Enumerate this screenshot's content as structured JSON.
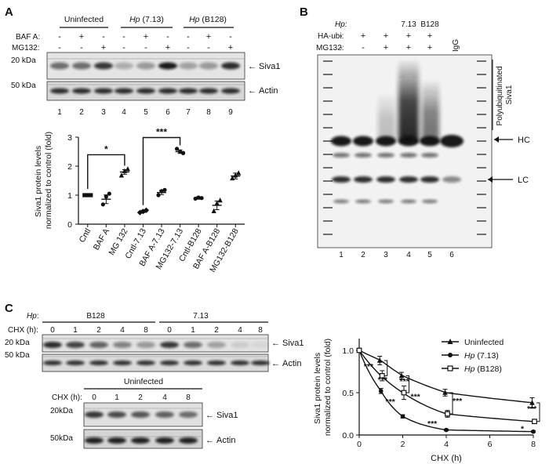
{
  "panels": {
    "a": "A",
    "b": "B",
    "c": "C"
  },
  "panel_a": {
    "groups": [
      {
        "label_italic": "",
        "label": "Uninfected"
      },
      {
        "label_italic": "Hp",
        "label": " (7.13)"
      },
      {
        "label_italic": "Hp",
        "label": " (B128)"
      }
    ],
    "rows": [
      {
        "label": "BAF A:",
        "signs": [
          "-",
          "+",
          "-",
          "-",
          "+",
          "-",
          "-",
          "+",
          "-"
        ]
      },
      {
        "label": "MG132:",
        "signs": [
          "-",
          "-",
          "+",
          "-",
          "-",
          "+",
          "-",
          "-",
          "+"
        ]
      }
    ],
    "mw_top": "20 kDa",
    "mw_bottom": "50 kDa",
    "band_top": "Siva1",
    "band_bottom": "Actin",
    "lanes": [
      "1",
      "2",
      "3",
      "4",
      "5",
      "6",
      "7",
      "8",
      "9"
    ],
    "arrow": "←"
  },
  "chart_data": [
    {
      "type": "scatter",
      "ylabel": "Siva1 protein levels normalized to control (fold)",
      "ylabel_lines": [
        "Siva1 protein levels",
        "normalized to control (fold)"
      ],
      "ylim": [
        0,
        3
      ],
      "yticks": [
        "0",
        "1",
        "2",
        "3"
      ],
      "categories": [
        "Cntl",
        "BAF A",
        "MG 132",
        "Cntl-7.13",
        "BAF A-7.13",
        "MG132-7.13",
        "Cntl-B128",
        "BAF A-B128",
        "MG132-B128"
      ],
      "markers": [
        "square",
        "dot",
        "triangle",
        "diamond",
        "dot",
        "dot",
        "dot",
        "triangle",
        "triangle"
      ],
      "means": [
        1.0,
        0.86,
        1.8,
        0.44,
        1.09,
        2.5,
        0.9,
        0.65,
        1.66
      ],
      "sem": [
        0.04,
        0.15,
        0.08,
        0.04,
        0.07,
        0.06,
        0.04,
        0.15,
        0.1
      ],
      "points": [
        [
          1.0,
          1.0,
          1.0
        ],
        [
          0.68,
          0.95,
          1.05
        ],
        [
          1.68,
          1.83,
          1.9
        ],
        [
          0.4,
          0.44,
          0.48
        ],
        [
          1.0,
          1.14,
          1.18
        ],
        [
          2.6,
          2.5,
          2.45
        ],
        [
          0.88,
          0.92,
          0.9
        ],
        [
          0.45,
          0.72,
          0.82
        ],
        [
          1.58,
          1.68,
          1.76
        ]
      ],
      "significance": [
        {
          "from": 0,
          "to": 2,
          "label": "*"
        },
        {
          "from": 3,
          "to": 5,
          "label": "***"
        }
      ]
    },
    {
      "type": "line",
      "xlabel": "CHX (h)",
      "ylabel": "Siva1 protein levels normalized to control (fold)",
      "ylabel_lines": [
        "Siva1 protein levels",
        "normalized to control (fold)"
      ],
      "xlim": [
        0,
        8
      ],
      "ylim": [
        0,
        1
      ],
      "xticks": [
        "0",
        "2",
        "4",
        "6",
        "8"
      ],
      "yticks": [
        "0.0",
        "0.5",
        "1.0"
      ],
      "x": [
        0,
        1,
        2,
        4,
        8
      ],
      "legend_position": "top-right",
      "series": [
        {
          "name": "Uninfected",
          "name_italic": "",
          "marker": "triangle",
          "values": [
            1.0,
            0.88,
            0.7,
            0.5,
            0.38
          ],
          "err": [
            0,
            0.05,
            0.04,
            0.04,
            0.06
          ]
        },
        {
          "name": " (7.13)",
          "name_italic": "Hp",
          "marker": "dot",
          "values": [
            1.0,
            0.52,
            0.22,
            0.06,
            0.04
          ],
          "err": [
            0,
            0.03,
            0.02,
            0.01,
            0.01
          ]
        },
        {
          "name": " (B128)",
          "name_italic": "Hp",
          "marker": "open-square",
          "values": [
            1.0,
            0.7,
            0.5,
            0.25,
            0.16
          ],
          "err": [
            0,
            0.06,
            0.08,
            0.04,
            0.02
          ]
        }
      ],
      "annotations": [
        {
          "x": 1,
          "labels": [
            "***",
            "***"
          ]
        },
        {
          "x": 2,
          "labels": [
            "***",
            "***",
            "***"
          ]
        },
        {
          "x": 4,
          "labels": [
            "***",
            "***"
          ]
        },
        {
          "x": 8,
          "labels": [
            "*",
            "***"
          ]
        }
      ]
    }
  ],
  "panel_b": {
    "rows": [
      {
        "label": "Hp:",
        "label_italic": true,
        "signs": [
          "",
          "",
          "",
          "7.13",
          "B128",
          ""
        ]
      },
      {
        "label": "HA-ubi:",
        "label_italic": false,
        "signs": [
          "-",
          "+",
          "+",
          "+",
          "+",
          ""
        ]
      },
      {
        "label": "MG132:",
        "label_italic": false,
        "signs": [
          "-",
          "-",
          "+",
          "+",
          "+",
          ""
        ]
      }
    ],
    "igg": "IgG",
    "poly_label": [
      "Polyubiquitinated",
      "Siva1"
    ],
    "hc": "HC",
    "lc": "LC",
    "lanes": [
      "1",
      "2",
      "3",
      "4",
      "5",
      "6"
    ]
  },
  "panel_c": {
    "hp_label": "Hp",
    "hp_colon": ":",
    "groups": [
      "B128",
      "7.13"
    ],
    "chx_label": "CHX (h):",
    "times": [
      "0",
      "1",
      "2",
      "4",
      "8"
    ],
    "mw_top": "20 kDa",
    "mw_bottom": "50 kDa",
    "band_top": "Siva1",
    "band_bottom": "Actin",
    "lower_title": "Uninfected",
    "lower_mw_top": "20kDa",
    "lower_mw_bottom": "50kDa"
  }
}
